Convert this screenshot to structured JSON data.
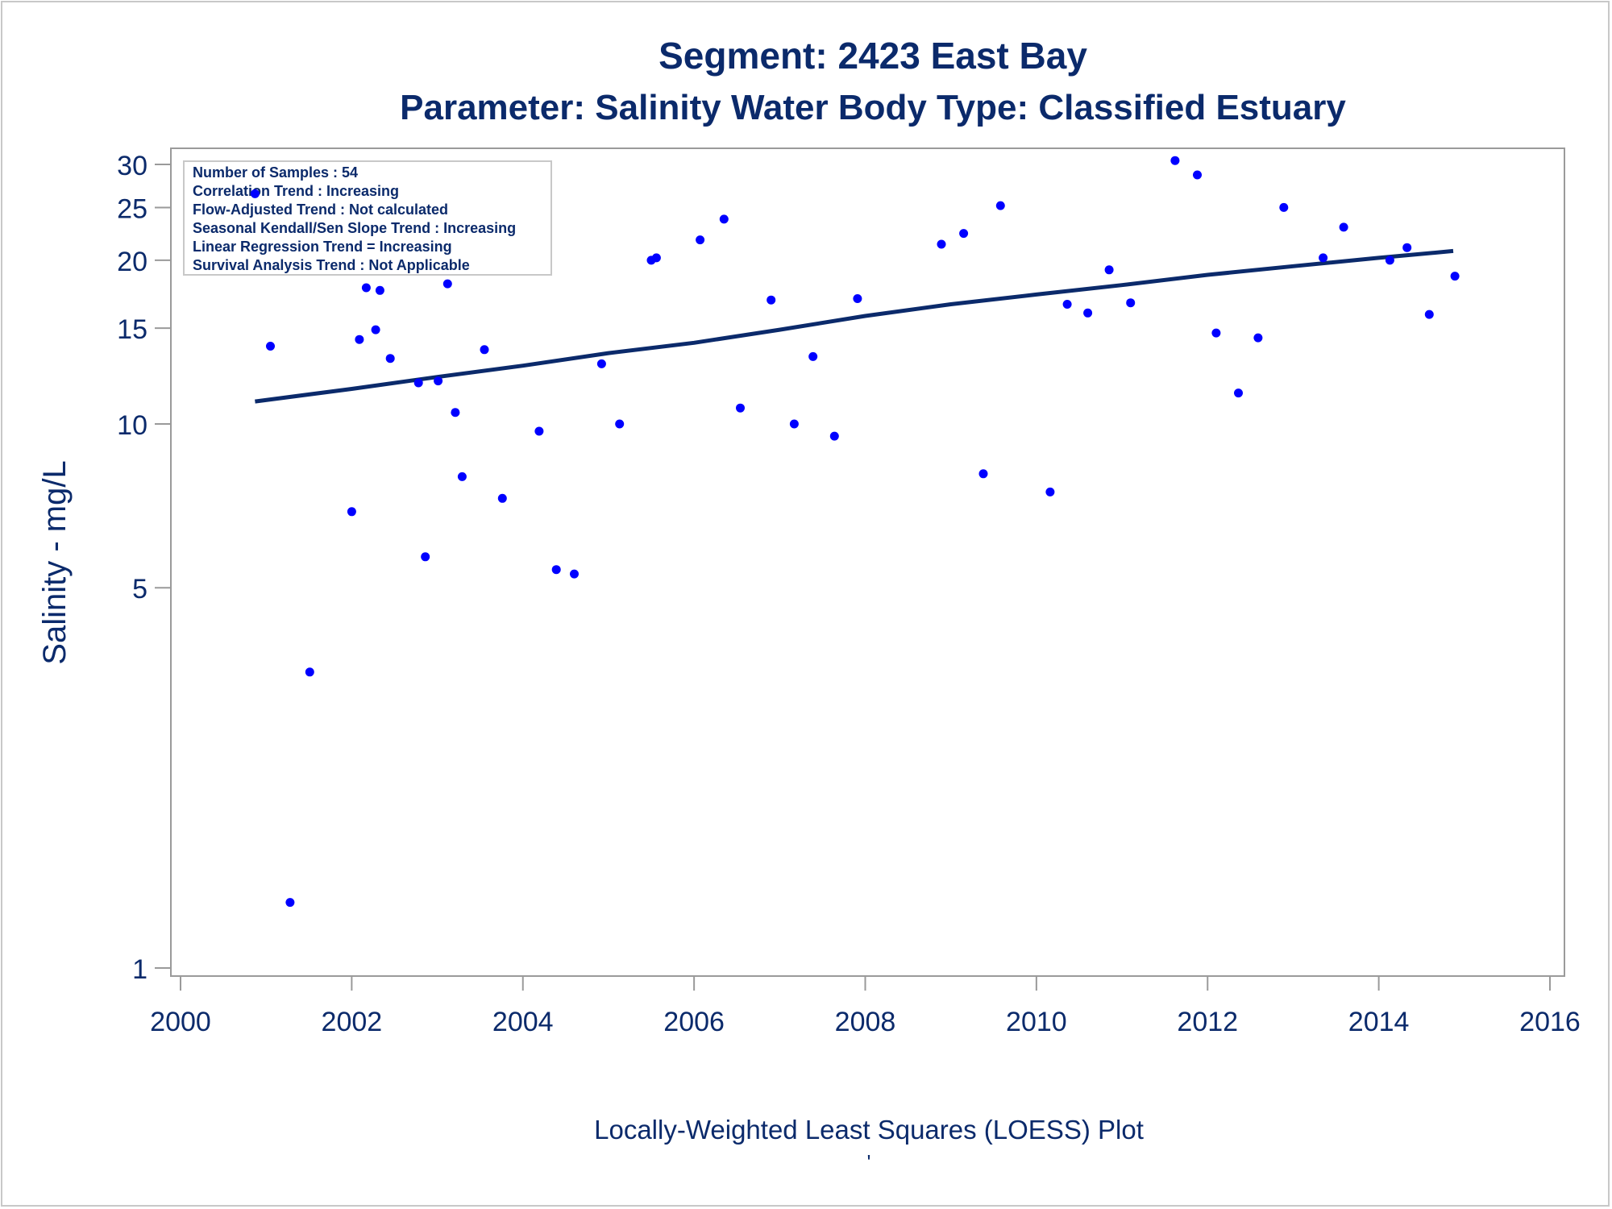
{
  "chart_data": {
    "type": "scatter",
    "title": "Segment: 2423  East Bay",
    "subtitle": "Parameter: Salinity   Water Body Type: Classified Estuary",
    "xlabel": "Locally-Weighted Least Squares (LOESS) Plot",
    "ylabel": "Salinity - mg/L",
    "footnote": "'",
    "y_scale": "log",
    "xlim": [
      2000,
      2016
    ],
    "ylim": [
      1,
      30
    ],
    "x_ticks": [
      2000,
      2002,
      2004,
      2006,
      2008,
      2010,
      2012,
      2014,
      2016
    ],
    "y_ticks": [
      1,
      5,
      10,
      15,
      20,
      25,
      30
    ],
    "grid": false,
    "colors": {
      "points": "#0000ff",
      "trend": "#0b2a6b",
      "text": "#0b2a6b",
      "frame": "#9a9a9a"
    },
    "stats_box": {
      "placement": "top-left",
      "lines": [
        "Number of Samples : 54",
        "Correlation Trend : Increasing",
        "Flow-Adjusted Trend : Not calculated",
        "Seasonal Kendall/Sen Slope Trend : Increasing",
        "Linear Regression Trend = Increasing",
        "Survival Analysis Trend : Not Applicable"
      ]
    },
    "points": [
      {
        "x": 2000.87,
        "y": 26.5
      },
      {
        "x": 2001.05,
        "y": 13.9
      },
      {
        "x": 2001.28,
        "y": 1.32
      },
      {
        "x": 2001.51,
        "y": 3.5
      },
      {
        "x": 2002.0,
        "y": 6.9
      },
      {
        "x": 2002.09,
        "y": 14.3
      },
      {
        "x": 2002.17,
        "y": 17.8
      },
      {
        "x": 2002.28,
        "y": 14.9
      },
      {
        "x": 2002.33,
        "y": 17.6
      },
      {
        "x": 2002.45,
        "y": 13.2
      },
      {
        "x": 2002.78,
        "y": 11.9
      },
      {
        "x": 2002.86,
        "y": 5.7
      },
      {
        "x": 2003.01,
        "y": 12.0
      },
      {
        "x": 2003.12,
        "y": 18.1
      },
      {
        "x": 2003.21,
        "y": 10.5
      },
      {
        "x": 2003.29,
        "y": 8.0
      },
      {
        "x": 2003.76,
        "y": 7.3
      },
      {
        "x": 2003.55,
        "y": 13.7
      },
      {
        "x": 2004.19,
        "y": 9.7
      },
      {
        "x": 2004.39,
        "y": 5.4
      },
      {
        "x": 2004.6,
        "y": 5.3
      },
      {
        "x": 2004.92,
        "y": 12.9
      },
      {
        "x": 2005.13,
        "y": 10.0
      },
      {
        "x": 2005.5,
        "y": 20.0
      },
      {
        "x": 2005.56,
        "y": 20.2
      },
      {
        "x": 2006.07,
        "y": 21.8
      },
      {
        "x": 2006.35,
        "y": 23.8
      },
      {
        "x": 2006.54,
        "y": 10.7
      },
      {
        "x": 2006.9,
        "y": 16.9
      },
      {
        "x": 2007.17,
        "y": 10.0
      },
      {
        "x": 2007.39,
        "y": 13.3
      },
      {
        "x": 2007.64,
        "y": 9.5
      },
      {
        "x": 2007.91,
        "y": 17.0
      },
      {
        "x": 2008.89,
        "y": 21.4
      },
      {
        "x": 2009.15,
        "y": 22.4
      },
      {
        "x": 2009.38,
        "y": 8.1
      },
      {
        "x": 2009.58,
        "y": 25.2
      },
      {
        "x": 2010.16,
        "y": 7.5
      },
      {
        "x": 2010.36,
        "y": 16.6
      },
      {
        "x": 2010.6,
        "y": 16.0
      },
      {
        "x": 2010.85,
        "y": 19.2
      },
      {
        "x": 2011.1,
        "y": 16.7
      },
      {
        "x": 2011.62,
        "y": 30.5
      },
      {
        "x": 2011.88,
        "y": 28.7
      },
      {
        "x": 2012.1,
        "y": 14.7
      },
      {
        "x": 2012.36,
        "y": 11.4
      },
      {
        "x": 2012.59,
        "y": 14.4
      },
      {
        "x": 2012.89,
        "y": 25.0
      },
      {
        "x": 2013.35,
        "y": 20.2
      },
      {
        "x": 2013.59,
        "y": 23.0
      },
      {
        "x": 2014.13,
        "y": 20.0
      },
      {
        "x": 2014.33,
        "y": 21.1
      },
      {
        "x": 2014.59,
        "y": 15.9
      },
      {
        "x": 2014.89,
        "y": 18.7
      }
    ],
    "trend_line": {
      "x": [
        2000.87,
        2002.0,
        2003.0,
        2004.0,
        2005.0,
        2006.0,
        2007.0,
        2008.0,
        2009.0,
        2010.0,
        2011.0,
        2012.0,
        2013.0,
        2014.0,
        2014.87
      ],
      "y": [
        11.0,
        11.6,
        12.2,
        12.8,
        13.5,
        14.1,
        14.9,
        15.8,
        16.6,
        17.3,
        18.0,
        18.8,
        19.5,
        20.2,
        20.8
      ]
    }
  }
}
